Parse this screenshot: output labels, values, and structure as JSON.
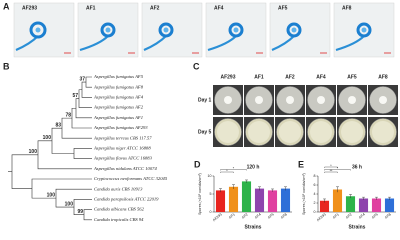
{
  "panel_a": {
    "letter": "A",
    "labels": [
      "AF293",
      "AF1",
      "AF2",
      "AF4",
      "AF5",
      "AF8"
    ]
  },
  "panel_b": {
    "letter": "B",
    "taxa": [
      "Aspergillus fumigatus AF5",
      "Aspergillus fumigatus AF8",
      "Aspergillus fumigatus AF4",
      "Aspergillus fumigatus AF2",
      "Aspergillus fumigatus AF1",
      "Aspergillus fumigatus AF293",
      "Aspergillus terreus CBS 117.57",
      "Aspergillus niger ATCC 16888",
      "Aspergillus flavus ATCC 16883",
      "Aspergillus nidulans ATCC 10074",
      "Cryptococcus neoformans ATCC 32045",
      "Candida auris CBS 10913",
      "Candida parapsilosis ATCC 22019",
      "Candida albicans CBS 562",
      "Candida tropicalis CBS 94"
    ],
    "bootstrap": [
      "37",
      "57",
      "78",
      "83",
      "100",
      "100",
      "100",
      "100",
      "99"
    ]
  },
  "panel_c": {
    "letter": "C",
    "columns": [
      "AF293",
      "AF1",
      "AF2",
      "AF4",
      "AF5",
      "AF8"
    ],
    "rows": [
      "Day 1",
      "Day 5"
    ]
  },
  "chart_data": [
    {
      "type": "bar",
      "letter": "D",
      "title": "120 h",
      "xlabel": "Strains",
      "ylabel": "Spores (×10⁶ conidia/cm²)",
      "categories": [
        "AF293",
        "AF1",
        "AF2",
        "AF4",
        "AF5",
        "AF8"
      ],
      "values": [
        6,
        7,
        8.5,
        6.5,
        6,
        6.5
      ],
      "errors": [
        0.5,
        0.6,
        0.4,
        0.5,
        0.4,
        0.5
      ],
      "colors": [
        "#e8241f",
        "#f0901a",
        "#2db34a",
        "#8e44ad",
        "#e040a0",
        "#2e6fd8"
      ],
      "ylim": [
        0,
        10
      ],
      "yticks": [
        0,
        5,
        10
      ],
      "annotations": [
        "*",
        "*"
      ]
    },
    {
      "type": "bar",
      "letter": "E",
      "title": "36 h",
      "xlabel": "Strains",
      "ylabel": "Spores (×10⁶ conidia/cm²)",
      "categories": [
        "AF293",
        "AF1",
        "AF2",
        "AF4",
        "AF5",
        "AF8"
      ],
      "values": [
        2.5,
        5,
        3.5,
        3,
        3,
        3
      ],
      "errors": [
        0.4,
        0.6,
        0.4,
        0.3,
        0.3,
        0.3
      ],
      "colors": [
        "#e8241f",
        "#f0901a",
        "#2db34a",
        "#8e44ad",
        "#e040a0",
        "#2e6fd8"
      ],
      "ylim": [
        0,
        8
      ],
      "yticks": [
        0,
        2,
        4,
        6,
        8
      ],
      "annotations": [
        "**",
        "*",
        "*"
      ]
    }
  ]
}
